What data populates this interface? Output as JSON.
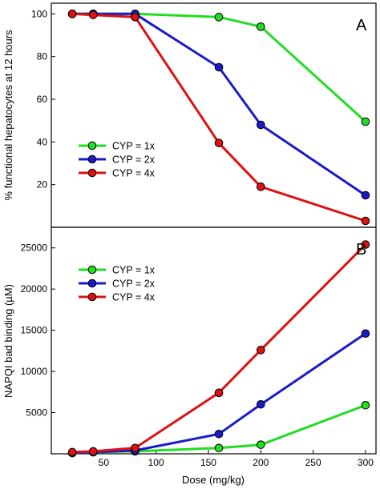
{
  "chart_data": [
    {
      "panel": "A",
      "type": "line",
      "xlabel": "",
      "ylabel": "% functional hepatocytes at 12 hours",
      "x": [
        20,
        40,
        80,
        160,
        200,
        300
      ],
      "xlim": [
        0,
        310
      ],
      "ylim": [
        0,
        105
      ],
      "yticks": [
        20,
        40,
        60,
        80,
        100
      ],
      "series": [
        {
          "name": "CYP = 1x",
          "color": "#22dd22",
          "values": [
            100,
            100,
            100,
            98.5,
            94,
            49.5
          ]
        },
        {
          "name": "CYP = 2x",
          "color": "#1a1acc",
          "values": [
            100,
            100,
            100,
            75,
            48,
            15
          ]
        },
        {
          "name": "CYP = 4x",
          "color": "#dd1111",
          "values": [
            100,
            99.5,
            98.5,
            39.5,
            19,
            3
          ]
        }
      ],
      "legend_position": "left"
    },
    {
      "panel": "B",
      "type": "line",
      "xlabel": "Dose (mg/kg)",
      "ylabel": "NAPQI bad binding (µM)",
      "x": [
        20,
        40,
        80,
        160,
        200,
        300
      ],
      "xlim": [
        0,
        310
      ],
      "ylim": [
        0,
        27500
      ],
      "xticks": [
        50,
        100,
        150,
        200,
        250,
        300
      ],
      "yticks": [
        5000,
        10000,
        15000,
        20000,
        25000
      ],
      "series": [
        {
          "name": "CYP = 1x",
          "color": "#22dd22",
          "values": [
            100,
            200,
            300,
            700,
            1100,
            5900
          ]
        },
        {
          "name": "CYP = 2x",
          "color": "#1a1acc",
          "values": [
            100,
            200,
            400,
            2400,
            6000,
            14600
          ]
        },
        {
          "name": "CYP = 4x",
          "color": "#dd1111",
          "values": [
            200,
            300,
            700,
            7400,
            12600,
            25400
          ]
        }
      ],
      "legend_position": "top-left"
    }
  ]
}
